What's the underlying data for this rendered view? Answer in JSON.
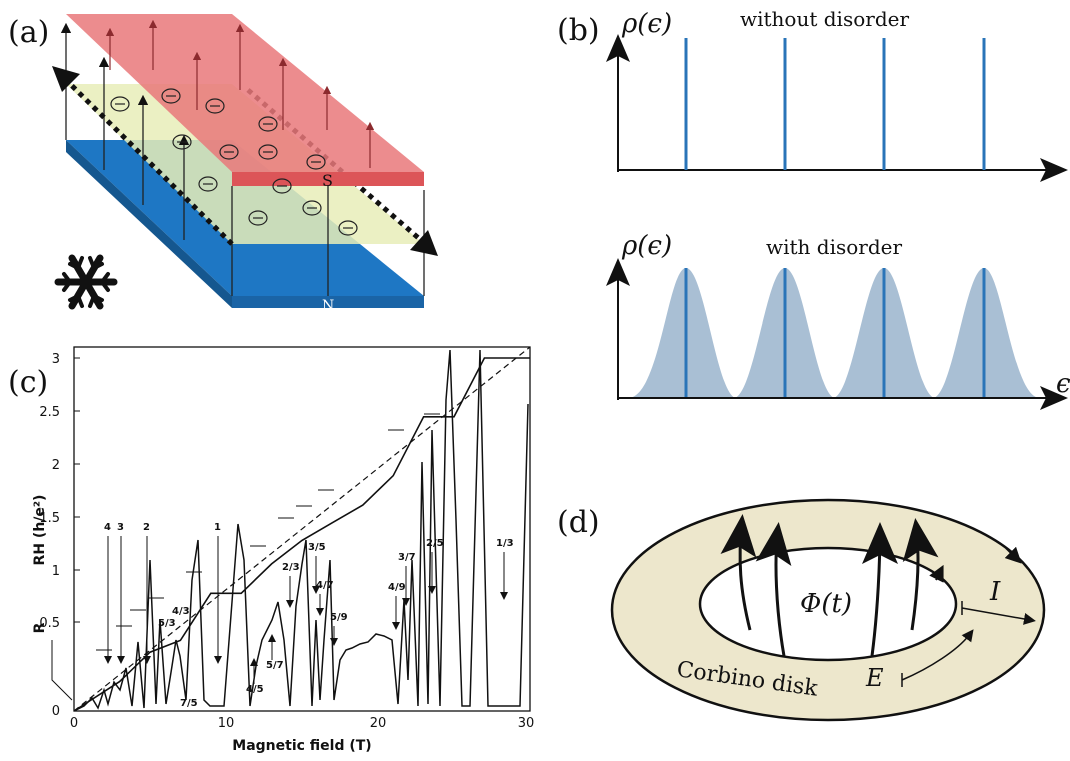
{
  "panels": {
    "a": {
      "label": "(a)",
      "plate_top_label": "S",
      "plate_bottom_label": "N",
      "electron_symbol": "⊖",
      "snowflake_icon": "snowflake-icon",
      "colors": {
        "top_plate": "#e9787a",
        "bottom_plate": "#1e77c4",
        "layer": "#e8edb8"
      }
    },
    "b": {
      "label": "(b)",
      "top_ylabel": "ρ(ϵ)",
      "top_title": "without disorder",
      "bottom_ylabel": "ρ(ϵ)",
      "bottom_title": "with disorder",
      "xlabel": "ϵ",
      "colors": {
        "line": "#2a74b8",
        "fill": "#a9bfd4"
      }
    },
    "c": {
      "label": "(c)",
      "ylabel_top": "RH (h/e²)",
      "ylabel_bottom": "R",
      "xlabel": "Magnetic field (T)",
      "y_ticks": [
        "0",
        "0.5",
        "1",
        "1.5",
        "2",
        "2.5",
        "3"
      ],
      "x_ticks": [
        "0",
        "10",
        "20",
        "30"
      ],
      "fraction_labels": [
        "4",
        "3",
        "2",
        "1",
        "5/3",
        "4/3",
        "7/5",
        "2/3",
        "3/5",
        "4/7",
        "5/9",
        "5/7",
        "4/5",
        "3/7",
        "4/9",
        "2/5",
        "1/3"
      ]
    },
    "d": {
      "label": "(d)",
      "flux_label": "Φ(t)",
      "current_label": "I",
      "field_label": "E",
      "disk_label": "Corbino disk",
      "colors": {
        "disk": "#ede7cc"
      }
    }
  },
  "chart_data": {
    "type": "line",
    "title": "",
    "xlabel": "Magnetic field (T)",
    "ylabel": "RH (h/e²)",
    "xlim": [
      0,
      30
    ],
    "ylim": [
      0,
      3
    ],
    "series": [
      {
        "x": [
          0,
          3,
          5,
          7,
          9,
          11,
          13,
          15,
          17,
          19,
          21,
          23,
          25,
          27,
          30
        ],
        "values": [
          0,
          0.25,
          0.5,
          0.6,
          1.0,
          1.0,
          1.25,
          1.45,
          1.6,
          1.75,
          2.0,
          2.5,
          2.5,
          3.0,
          3.0
        ]
      }
    ]
  }
}
